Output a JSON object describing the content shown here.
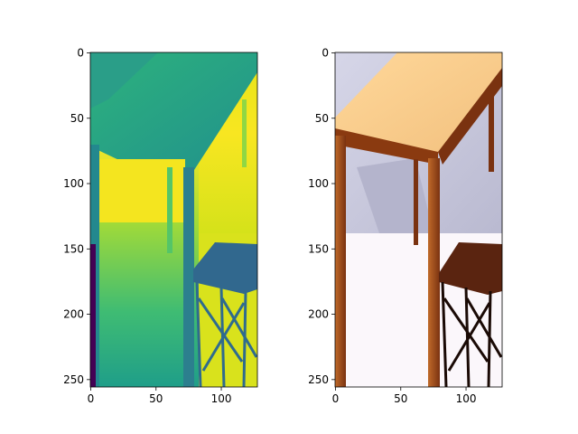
{
  "figure": {
    "background": "#ffffff"
  },
  "chart_data": [
    {
      "type": "image",
      "colormap": "viridis",
      "title": "",
      "xlabel": "",
      "ylabel": "",
      "xlim": [
        0,
        128
      ],
      "ylim": [
        256,
        0
      ],
      "x_ticks": [
        0,
        50,
        100
      ],
      "y_ticks": [
        0,
        50,
        100,
        150,
        200,
        250
      ],
      "colors": {
        "near": "#440154",
        "mid": "#21918c",
        "far": "#fde725",
        "tabletop": "#3b8f8c",
        "shelf": "#31688e"
      }
    },
    {
      "type": "image",
      "colormap": "rgb",
      "title": "",
      "xlabel": "",
      "ylabel": "",
      "xlim": [
        0,
        128
      ],
      "ylim": [
        256,
        0
      ],
      "x_ticks": [
        0,
        50,
        100
      ],
      "y_ticks": [
        0,
        50,
        100,
        150,
        200,
        250
      ],
      "colors": {
        "wall": "#c3c3d9",
        "floor": "#fbf7fb",
        "tabletop": "#f6c98a",
        "wood": "#8a3a10",
        "shelf": "#5a2410"
      }
    }
  ]
}
